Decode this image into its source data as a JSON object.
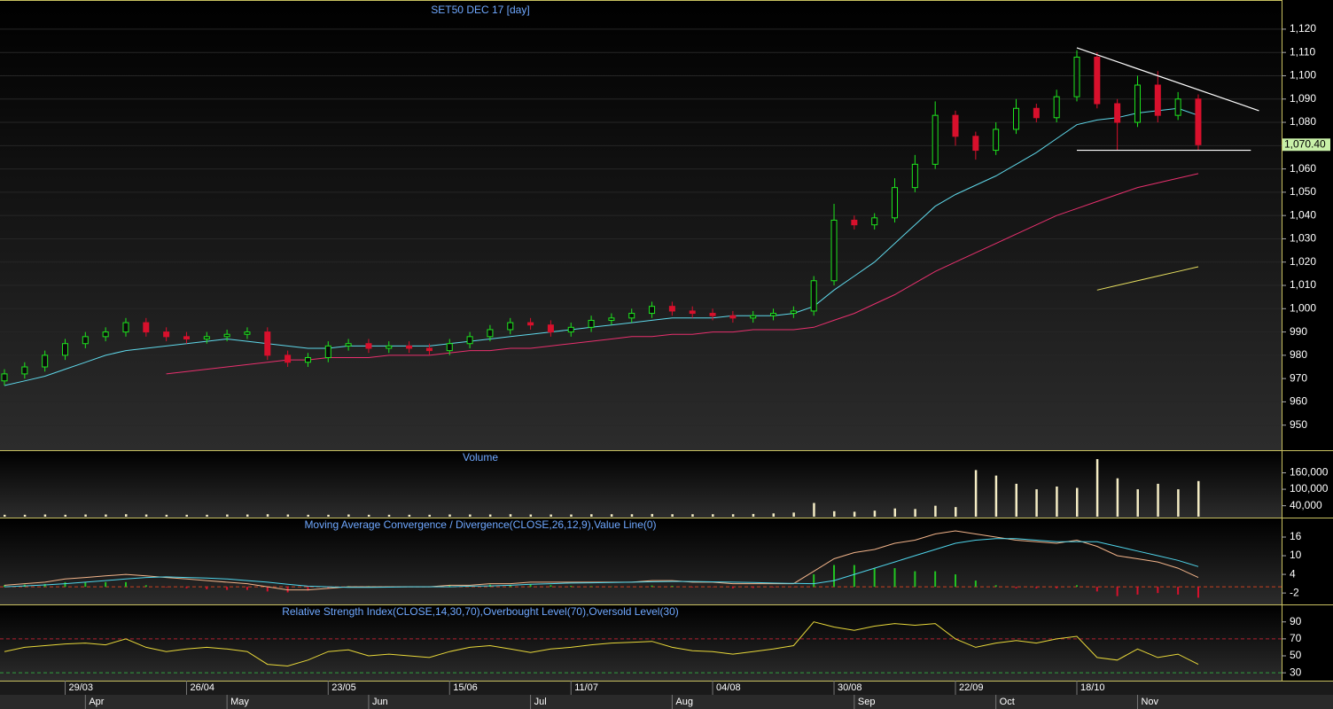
{
  "chart_data": [
    {
      "type": "candlestick",
      "title": "SET50 DEC 17   [day]",
      "categories": [
        null,
        null,
        null,
        "29/03",
        null,
        null,
        null,
        null,
        null,
        "26/04",
        null,
        null,
        null,
        null,
        null,
        null,
        "23/05",
        null,
        null,
        null,
        null,
        null,
        "15/06",
        null,
        null,
        null,
        null,
        null,
        "11/07",
        null,
        null,
        null,
        null,
        null,
        null,
        "04/08",
        null,
        null,
        null,
        null,
        null,
        "30/08",
        null,
        null,
        null,
        null,
        null,
        "22/09",
        null,
        null,
        null,
        null,
        null,
        "18/10",
        null,
        null,
        null,
        null,
        null,
        null
      ],
      "months": [
        null,
        null,
        null,
        null,
        "Apr",
        null,
        null,
        null,
        null,
        null,
        null,
        "May",
        null,
        null,
        null,
        null,
        null,
        null,
        "Jun",
        null,
        null,
        null,
        null,
        null,
        null,
        null,
        "Jul",
        null,
        null,
        null,
        null,
        null,
        null,
        "Aug",
        null,
        null,
        null,
        null,
        null,
        null,
        null,
        null,
        "Sep",
        null,
        null,
        null,
        null,
        null,
        null,
        "Oct",
        null,
        null,
        null,
        null,
        null,
        null,
        "Nov",
        null,
        null,
        null
      ],
      "open": [
        969,
        972,
        975,
        980,
        985,
        988,
        990,
        994,
        990,
        988,
        987,
        988,
        989,
        990,
        980,
        977,
        979,
        984,
        985,
        983,
        984,
        983,
        982,
        985,
        988,
        991,
        994,
        993,
        990,
        992,
        995,
        996,
        998,
        1001,
        999,
        998,
        997,
        996,
        997,
        998,
        999,
        1012,
        1038,
        1036,
        1039,
        1052,
        1062,
        1083,
        1074,
        1068,
        1077,
        1086,
        1082,
        1091,
        1108,
        1088,
        1080,
        1096,
        1083,
        1090
      ],
      "high": [
        974,
        977,
        982,
        987,
        990,
        992,
        996,
        996,
        992,
        990,
        990,
        991,
        992,
        992,
        982,
        981,
        986,
        987,
        987,
        986,
        986,
        985,
        987,
        990,
        993,
        996,
        996,
        995,
        994,
        997,
        998,
        1000,
        1003,
        1003,
        1001,
        1000,
        999,
        999,
        1000,
        1001,
        1014,
        1045,
        1040,
        1041,
        1056,
        1066,
        1089,
        1085,
        1076,
        1080,
        1090,
        1088,
        1094,
        1111,
        1110,
        1090,
        1100,
        1102,
        1093,
        1092
      ],
      "low": [
        967,
        970,
        973,
        978,
        983,
        986,
        988,
        988,
        986,
        985,
        985,
        986,
        987,
        978,
        975,
        975,
        977,
        982,
        981,
        981,
        981,
        980,
        980,
        983,
        986,
        989,
        991,
        988,
        988,
        990,
        993,
        994,
        996,
        997,
        996,
        995,
        994,
        994,
        995,
        996,
        997,
        1010,
        1034,
        1034,
        1037,
        1050,
        1060,
        1070,
        1064,
        1066,
        1075,
        1080,
        1080,
        1089,
        1086,
        1068,
        1078,
        1080,
        1081,
        1068
      ],
      "close": [
        972,
        975,
        980,
        985,
        988,
        990,
        994,
        990,
        988,
        987,
        988,
        989,
        990,
        980,
        977,
        979,
        984,
        985,
        983,
        984,
        983,
        982,
        985,
        988,
        991,
        994,
        993,
        990,
        992,
        995,
        996,
        998,
        1001,
        999,
        998,
        997,
        996,
        997,
        998,
        999,
        1012,
        1038,
        1036,
        1039,
        1052,
        1062,
        1083,
        1074,
        1068,
        1077,
        1086,
        1082,
        1091,
        1108,
        1088,
        1080,
        1096,
        1083,
        1090,
        1070.4
      ],
      "up_color": "#1ee61e",
      "down_color": "#d8102c",
      "overlays": [
        {
          "color": "#5fd8ea",
          "values": [
            967,
            969,
            971,
            974,
            977,
            980,
            982,
            983,
            984,
            985,
            986,
            987,
            986,
            985,
            984,
            983,
            983,
            984,
            984,
            984,
            984,
            984,
            985,
            986,
            987,
            988,
            989,
            990,
            991,
            992,
            993,
            994,
            995,
            996,
            996,
            996,
            997,
            997,
            997,
            998,
            1001,
            1008,
            1014,
            1020,
            1028,
            1036,
            1044,
            1049,
            1053,
            1057,
            1062,
            1067,
            1073,
            1079,
            1081,
            1082,
            1084,
            1085,
            1086,
            1083
          ]
        },
        {
          "color": "#e8306e",
          "values": [
            null,
            null,
            null,
            null,
            null,
            null,
            null,
            null,
            972,
            973,
            974,
            975,
            976,
            977,
            978,
            978,
            979,
            979,
            979,
            980,
            980,
            980,
            981,
            982,
            982,
            983,
            983,
            984,
            985,
            986,
            987,
            988,
            988,
            989,
            989,
            990,
            990,
            991,
            991,
            991,
            992,
            995,
            998,
            1002,
            1006,
            1011,
            1016,
            1020,
            1024,
            1028,
            1032,
            1036,
            1040,
            1043,
            1046,
            1049,
            1052,
            1054,
            1056,
            1058
          ]
        },
        {
          "color": "#e8e060",
          "values": [
            null,
            null,
            null,
            null,
            null,
            null,
            null,
            null,
            null,
            null,
            null,
            null,
            null,
            null,
            null,
            null,
            null,
            null,
            null,
            null,
            null,
            null,
            null,
            null,
            null,
            null,
            null,
            null,
            null,
            null,
            null,
            null,
            null,
            null,
            null,
            null,
            null,
            null,
            null,
            null,
            null,
            null,
            null,
            null,
            null,
            null,
            null,
            null,
            null,
            null,
            null,
            null,
            null,
            null,
            1008,
            1010,
            1012,
            1014,
            1016,
            1018
          ]
        }
      ],
      "trendlines": [
        {
          "color": "#ffffff",
          "x": [
            53,
            62
          ],
          "y": [
            1112,
            1085
          ]
        },
        {
          "color": "#ffffff",
          "x": [
            53,
            61.6
          ],
          "y": [
            1068,
            1068
          ]
        }
      ],
      "last_price": {
        "value": 1070.4,
        "label": "1,070.40"
      },
      "ylim": [
        940,
        1131
      ],
      "yticks": [
        {
          "value": 950,
          "label": "950"
        },
        {
          "value": 960,
          "label": "960"
        },
        {
          "value": 970,
          "label": "970"
        },
        {
          "value": 980,
          "label": "980"
        },
        {
          "value": 990,
          "label": "990"
        },
        {
          "value": 1000,
          "label": "1,000"
        },
        {
          "value": 1010,
          "label": "1,010"
        },
        {
          "value": 1020,
          "label": "1,020"
        },
        {
          "value": 1030,
          "label": "1,030"
        },
        {
          "value": 1040,
          "label": "1,040"
        },
        {
          "value": 1050,
          "label": "1,050"
        },
        {
          "value": 1060,
          "label": "1,060"
        },
        {
          "value": 1070,
          "label": "1,070"
        },
        {
          "value": 1080,
          "label": "1,080"
        },
        {
          "value": 1090,
          "label": "1,090"
        },
        {
          "value": 1100,
          "label": "1,100"
        },
        {
          "value": 1110,
          "label": "1,110"
        },
        {
          "value": 1120,
          "label": "1,120"
        }
      ],
      "grid": true
    },
    {
      "type": "bar",
      "title": "Volume",
      "color": "#f4ecc4",
      "values": [
        7000,
        7000,
        8000,
        7000,
        8000,
        8000,
        9000,
        8000,
        7000,
        7000,
        7000,
        8000,
        8000,
        9000,
        8000,
        7000,
        7000,
        8000,
        7000,
        7000,
        7000,
        7000,
        8000,
        8000,
        8000,
        9000,
        8000,
        8000,
        8000,
        9000,
        9000,
        9000,
        10000,
        9000,
        9000,
        9000,
        9000,
        10000,
        12000,
        15000,
        50000,
        20000,
        18000,
        22000,
        30000,
        28000,
        40000,
        35000,
        170000,
        150000,
        120000,
        100000,
        110000,
        105000,
        210000,
        140000,
        100000,
        120000,
        100000,
        130000
      ],
      "ylim": [
        0,
        236000
      ],
      "yticks": [
        {
          "value": 40000,
          "label": "40,000"
        },
        {
          "value": 100000,
          "label": "100,000"
        },
        {
          "value": 160000,
          "label": "160,000"
        }
      ]
    },
    {
      "type": "macd",
      "title": "Moving Average Convergence / Divergence(CLOSE,26,12,9),Value Line(0)",
      "series": [
        {
          "color": "#f2b48a",
          "values": [
            0.5,
            1,
            1.5,
            2.5,
            3,
            3.5,
            4,
            3.5,
            3,
            2.5,
            2,
            1.5,
            1,
            0,
            -1,
            -1,
            -0.5,
            0,
            0,
            0,
            0,
            0,
            0.5,
            0.5,
            1,
            1,
            1.5,
            1.5,
            1.5,
            1.5,
            1.5,
            1.5,
            2,
            2,
            1.5,
            1.5,
            1,
            1,
            1,
            1,
            5,
            9,
            11,
            12,
            14,
            15,
            17,
            18,
            17,
            16,
            15,
            14.5,
            14,
            15,
            13,
            10,
            9,
            8,
            6,
            3
          ]
        },
        {
          "color": "#4fd4ea",
          "values": [
            0,
            0.3,
            0.6,
            1,
            1.5,
            2,
            2.5,
            3,
            3.2,
            3,
            2.8,
            2.5,
            2,
            1.5,
            0.8,
            0.2,
            0,
            -0.2,
            -0.2,
            -0.1,
            0,
            0,
            0,
            0.2,
            0.3,
            0.5,
            0.8,
            1,
            1.2,
            1.3,
            1.4,
            1.5,
            1.6,
            1.7,
            1.7,
            1.6,
            1.5,
            1.4,
            1.2,
            1.1,
            1,
            2,
            4,
            6,
            8,
            10,
            12,
            14,
            15,
            15.5,
            15.5,
            15,
            14.5,
            14.5,
            14.5,
            13,
            11.5,
            10,
            8.5,
            6.5
          ]
        }
      ],
      "histogram": [
        0.5,
        0.7,
        0.9,
        1.5,
        1.5,
        1.5,
        1.5,
        0.5,
        -0.2,
        -0.5,
        -0.8,
        -1,
        -1,
        -1.5,
        -1.8,
        -1.2,
        -0.5,
        0.2,
        0.2,
        0.1,
        0,
        0,
        0.5,
        0.3,
        0.7,
        0.5,
        0.7,
        0.5,
        0.3,
        0.2,
        0.1,
        0,
        0.4,
        0.3,
        -0.2,
        -0.1,
        -0.5,
        -0.4,
        -0.2,
        -0.1,
        4,
        7,
        7,
        6,
        6,
        5,
        5,
        4,
        2,
        0.5,
        -0.5,
        -0.5,
        -0.5,
        0.5,
        -1.5,
        -3,
        -2.5,
        -2,
        -2.5,
        -3.5
      ],
      "up_color": "#22c422",
      "down_color": "#d8102c",
      "value_line": 0,
      "ylim": [
        -5.1,
        21.7
      ],
      "yticks": [
        -2,
        4,
        10,
        16
      ]
    },
    {
      "type": "rsi",
      "title": "Relative Strength Index(CLOSE,14,30,70),Overbought Level(70),Oversold Level(30)",
      "color": "#e8d83a",
      "values": [
        55,
        60,
        62,
        64,
        65,
        63,
        70,
        60,
        55,
        58,
        60,
        58,
        55,
        40,
        38,
        45,
        55,
        57,
        50,
        52,
        50,
        48,
        55,
        60,
        62,
        58,
        54,
        58,
        60,
        63,
        65,
        66,
        67,
        60,
        56,
        55,
        52,
        55,
        58,
        62,
        90,
        84,
        80,
        85,
        88,
        86,
        88,
        70,
        60,
        65,
        68,
        65,
        70,
        73,
        48,
        45,
        58,
        48,
        52,
        40
      ],
      "overbought": 70,
      "oversold": 30,
      "ylim": [
        21.8,
        108.5
      ],
      "yticks": [
        30,
        50,
        70,
        90
      ]
    }
  ]
}
